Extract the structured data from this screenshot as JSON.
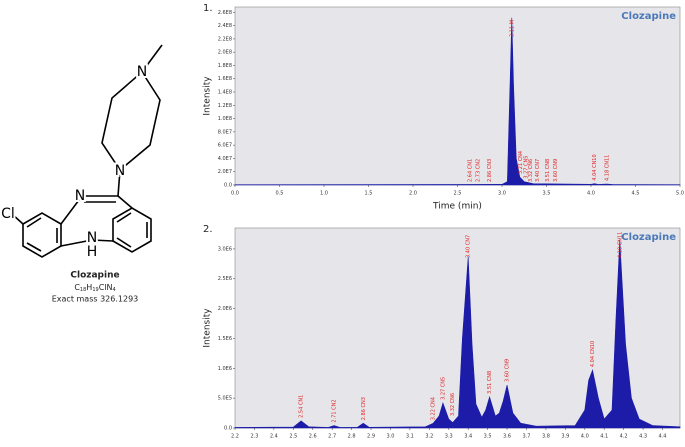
{
  "structure": {
    "atoms": [
      "N",
      "N",
      "N",
      "N",
      "H",
      "Cl"
    ],
    "name": "Clozapine",
    "formula": [
      "C",
      "18",
      "H",
      "19",
      "ClN",
      "4"
    ],
    "mass": "Exact mass 326.1293"
  },
  "chart_data": [
    {
      "type": "area",
      "label": "1.",
      "title": "Clozapine",
      "xlabel": "Time (min)",
      "ylabel": "Intensity",
      "color": "#1c1ca8",
      "x": [
        0,
        2.6,
        3.0,
        3.06,
        3.09,
        3.11,
        3.13,
        3.16,
        3.2,
        3.25,
        3.35,
        4.0,
        4.04,
        4.08,
        4.18,
        4.25,
        5.0
      ],
      "values": [
        500000,
        800000,
        1000000,
        5000000,
        150000000,
        252000000,
        150000000,
        40000000,
        12000000,
        5000000,
        2000000,
        1000000,
        2000000,
        800000,
        1500000,
        700000,
        500000
      ],
      "xlim": [
        0,
        5.0
      ],
      "ylim": [
        0,
        268000000
      ],
      "xticks": [
        {
          "value": 0,
          "label": "0.0"
        },
        0.5,
        {
          "value": 1,
          "label": "1.0"
        },
        1.5,
        {
          "value": 2,
          "label": "2.0"
        },
        2.5,
        {
          "value": 3,
          "label": "3.0"
        },
        3.5,
        {
          "value": 4,
          "label": "4.0"
        },
        4.5,
        {
          "value": 5,
          "label": "5.0"
        }
      ],
      "yticks": [
        {
          "value": 0,
          "label": "0.0"
        },
        {
          "value": 20000000,
          "label": "2.0E7"
        },
        {
          "value": 40000000,
          "label": "4.0E7"
        },
        {
          "value": 60000000,
          "label": "6.0E7"
        },
        {
          "value": 80000000,
          "label": "8.0E7"
        },
        {
          "value": 100000000,
          "label": "1.0E8"
        },
        {
          "value": 120000000,
          "label": "1.2E8"
        },
        {
          "value": 140000000,
          "label": "1.4E8"
        },
        {
          "value": 160000000,
          "label": "1.6E8"
        },
        {
          "value": 180000000,
          "label": "1.8E8"
        },
        {
          "value": 200000000,
          "label": "2.0E8"
        },
        {
          "value": 220000000,
          "label": "2.2E8"
        },
        {
          "value": 240000000,
          "label": "2.4E8"
        },
        {
          "value": 260000000,
          "label": "2.6E8"
        }
      ],
      "annotations": [
        {
          "text": "2.64 CN1",
          "x": 2.64
        },
        {
          "text": "2.73 CN2",
          "x": 2.73
        },
        {
          "text": "2.86 CN3",
          "x": 2.86
        },
        {
          "text": "3.11 M",
          "x": 3.11
        },
        {
          "text": "3.21 CN4",
          "x": 3.21
        },
        {
          "text": "3.27 CN5",
          "x": 3.27
        },
        {
          "text": "3.32 CN6",
          "x": 3.32
        },
        {
          "text": "3.40 CN7",
          "x": 3.4
        },
        {
          "text": "3.51 CN8",
          "x": 3.51
        },
        {
          "text": "3.60 CN9",
          "x": 3.6
        },
        {
          "text": "4.04 CN10",
          "x": 4.04
        },
        {
          "text": "4.18 CN11",
          "x": 4.18
        }
      ]
    },
    {
      "type": "area",
      "label": "2.",
      "title": "Clozapine",
      "ylabel": "Intensity",
      "color": "#1c1ca8",
      "x": [
        2.2,
        2.5,
        2.54,
        2.58,
        2.68,
        2.71,
        2.74,
        2.83,
        2.86,
        2.89,
        3.18,
        3.22,
        3.25,
        3.27,
        3.3,
        3.32,
        3.35,
        3.37,
        3.4,
        3.42,
        3.44,
        3.47,
        3.49,
        3.51,
        3.54,
        3.56,
        3.58,
        3.6,
        3.63,
        3.67,
        3.75,
        3.95,
        4.0,
        4.02,
        4.04,
        4.07,
        4.1,
        4.14,
        4.16,
        4.18,
        4.21,
        4.24,
        4.28,
        4.35,
        4.49
      ],
      "values": [
        10000,
        15000,
        120000,
        20000,
        10000,
        40000,
        10000,
        12000,
        80000,
        12000,
        20000,
        80000,
        200000,
        420000,
        150000,
        90000,
        200000,
        1500000,
        2870000,
        1400000,
        400000,
        180000,
        300000,
        520000,
        200000,
        250000,
        450000,
        720000,
        250000,
        80000,
        30000,
        40000,
        300000,
        800000,
        970000,
        500000,
        150000,
        300000,
        1800000,
        3150000,
        1400000,
        500000,
        150000,
        40000,
        20000
      ],
      "xlim": [
        2.2,
        4.49
      ],
      "ylim": [
        0,
        3350000
      ],
      "xticks": [
        2.2,
        2.3,
        2.4,
        2.5,
        2.6,
        2.7,
        2.8,
        2.9,
        {
          "value": 3,
          "label": "3.0"
        },
        3.1,
        3.2,
        3.3,
        3.4,
        3.5,
        3.6,
        3.7,
        3.8,
        3.9,
        {
          "value": 4,
          "label": "4.0"
        },
        4.1,
        4.2,
        4.3,
        4.4
      ],
      "yticks": [
        {
          "value": 0,
          "label": "0.0"
        },
        {
          "value": 500000,
          "label": "5.0E5"
        },
        {
          "value": 1000000,
          "label": "1.0E6"
        },
        {
          "value": 1500000,
          "label": "1.5E6"
        },
        {
          "value": 2000000,
          "label": "2.0E6"
        },
        {
          "value": 2500000,
          "label": "2.5E6"
        },
        {
          "value": 3000000,
          "label": "3.0E6"
        }
      ],
      "annotations": [
        {
          "text": "2.54 CN1",
          "x": 2.54
        },
        {
          "text": "2.71 CN2",
          "x": 2.71
        },
        {
          "text": "2.86 CN3",
          "x": 2.86
        },
        {
          "text": "3.22 CN4",
          "x": 3.22
        },
        {
          "text": "3.27 CN5",
          "x": 3.27
        },
        {
          "text": "3.32 CN6",
          "x": 3.32
        },
        {
          "text": "3.40 CN7",
          "x": 3.4
        },
        {
          "text": "3.51 CN8",
          "x": 3.51
        },
        {
          "text": "3.60 CN9",
          "x": 3.6
        },
        {
          "text": "4.04 CN10",
          "x": 4.04
        },
        {
          "text": "4.18 CN11",
          "x": 4.18
        }
      ]
    }
  ]
}
